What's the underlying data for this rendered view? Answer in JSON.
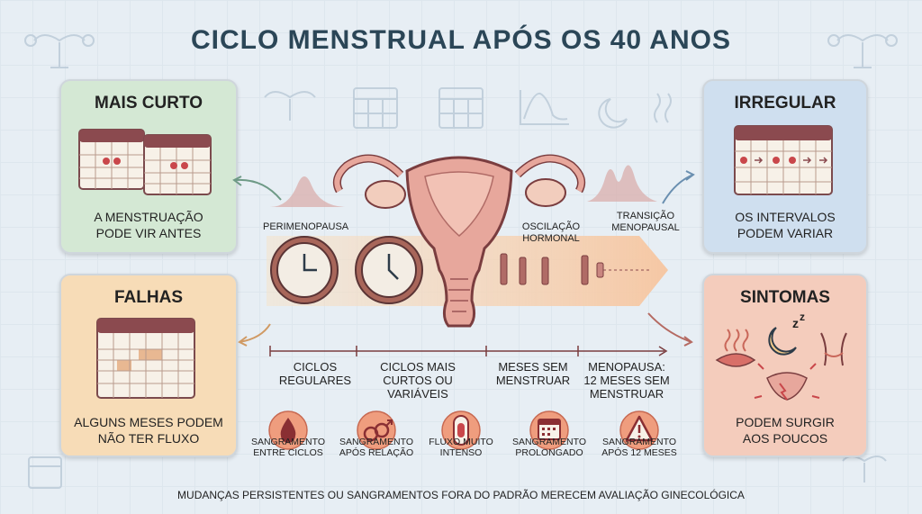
{
  "title": "CICLO MENSTRUAL APÓS OS 40 ANOS",
  "cards": {
    "mais_curto": {
      "title": "MAIS CURTO",
      "text": "A MENSTRUAÇÃO\nPODE VIR ANTES"
    },
    "irregular": {
      "title": "IRREGULAR",
      "text": "OS INTERVALOS\nPODEM VARIAR"
    },
    "falhas": {
      "title": "FALHAS",
      "text": "ALGUNS MESES PODEM\nNÃO TER FLUXO"
    },
    "sintomas": {
      "title": "SINTOMAS",
      "text": "PODEM SURGIR\nAOS POUCOS"
    }
  },
  "phase_labels": {
    "perimenopausa": "PERIMENOPAUSA",
    "oscilacao": "OSCILAÇÃO HORMONAL",
    "transicao": "TRANSIÇÃO\nMENOPAUSAL"
  },
  "stages": [
    "CICLOS\nREGULARES",
    "CICLOS MAIS\nCURTOS OU\nVARIÁVEIS",
    "MESES SEM\nMENSTRUAR",
    "MENOPAUSA:\n12 MESES SEM\nMENSTRUAR"
  ],
  "warnings": [
    {
      "text": "SANGRAMENTO\nENTRE CICLOS",
      "icon": "blood-drop-icon"
    },
    {
      "text": "SANGRAMENTO\nAPÓS RELAÇÃO",
      "icon": "couple-symbol-icon"
    },
    {
      "text": "FLUXO MUITO\nINTENSO",
      "icon": "pad-icon"
    },
    {
      "text": "SANGRAMENTO\nPROLONGADO",
      "icon": "calendar-icon"
    },
    {
      "text": "SANGRAMENTO\nAPÓS 12 MESES",
      "icon": "warning-icon"
    }
  ],
  "footer": "MUDANÇAS PERSISTENTES OU SANGRAMENTOS FORA DO PADRÃO MERECEM AVALIAÇÃO GINECOLÓGICA",
  "colors": {
    "background": "#e7eef4",
    "uterus": "#e7a79c",
    "uterus_outline": "#7a3d3f",
    "clock_ring": "#a8665a",
    "calendar_header": "#8b4a4f",
    "warning_circle": "#ef9d7e",
    "band": "#f6d6b5"
  }
}
